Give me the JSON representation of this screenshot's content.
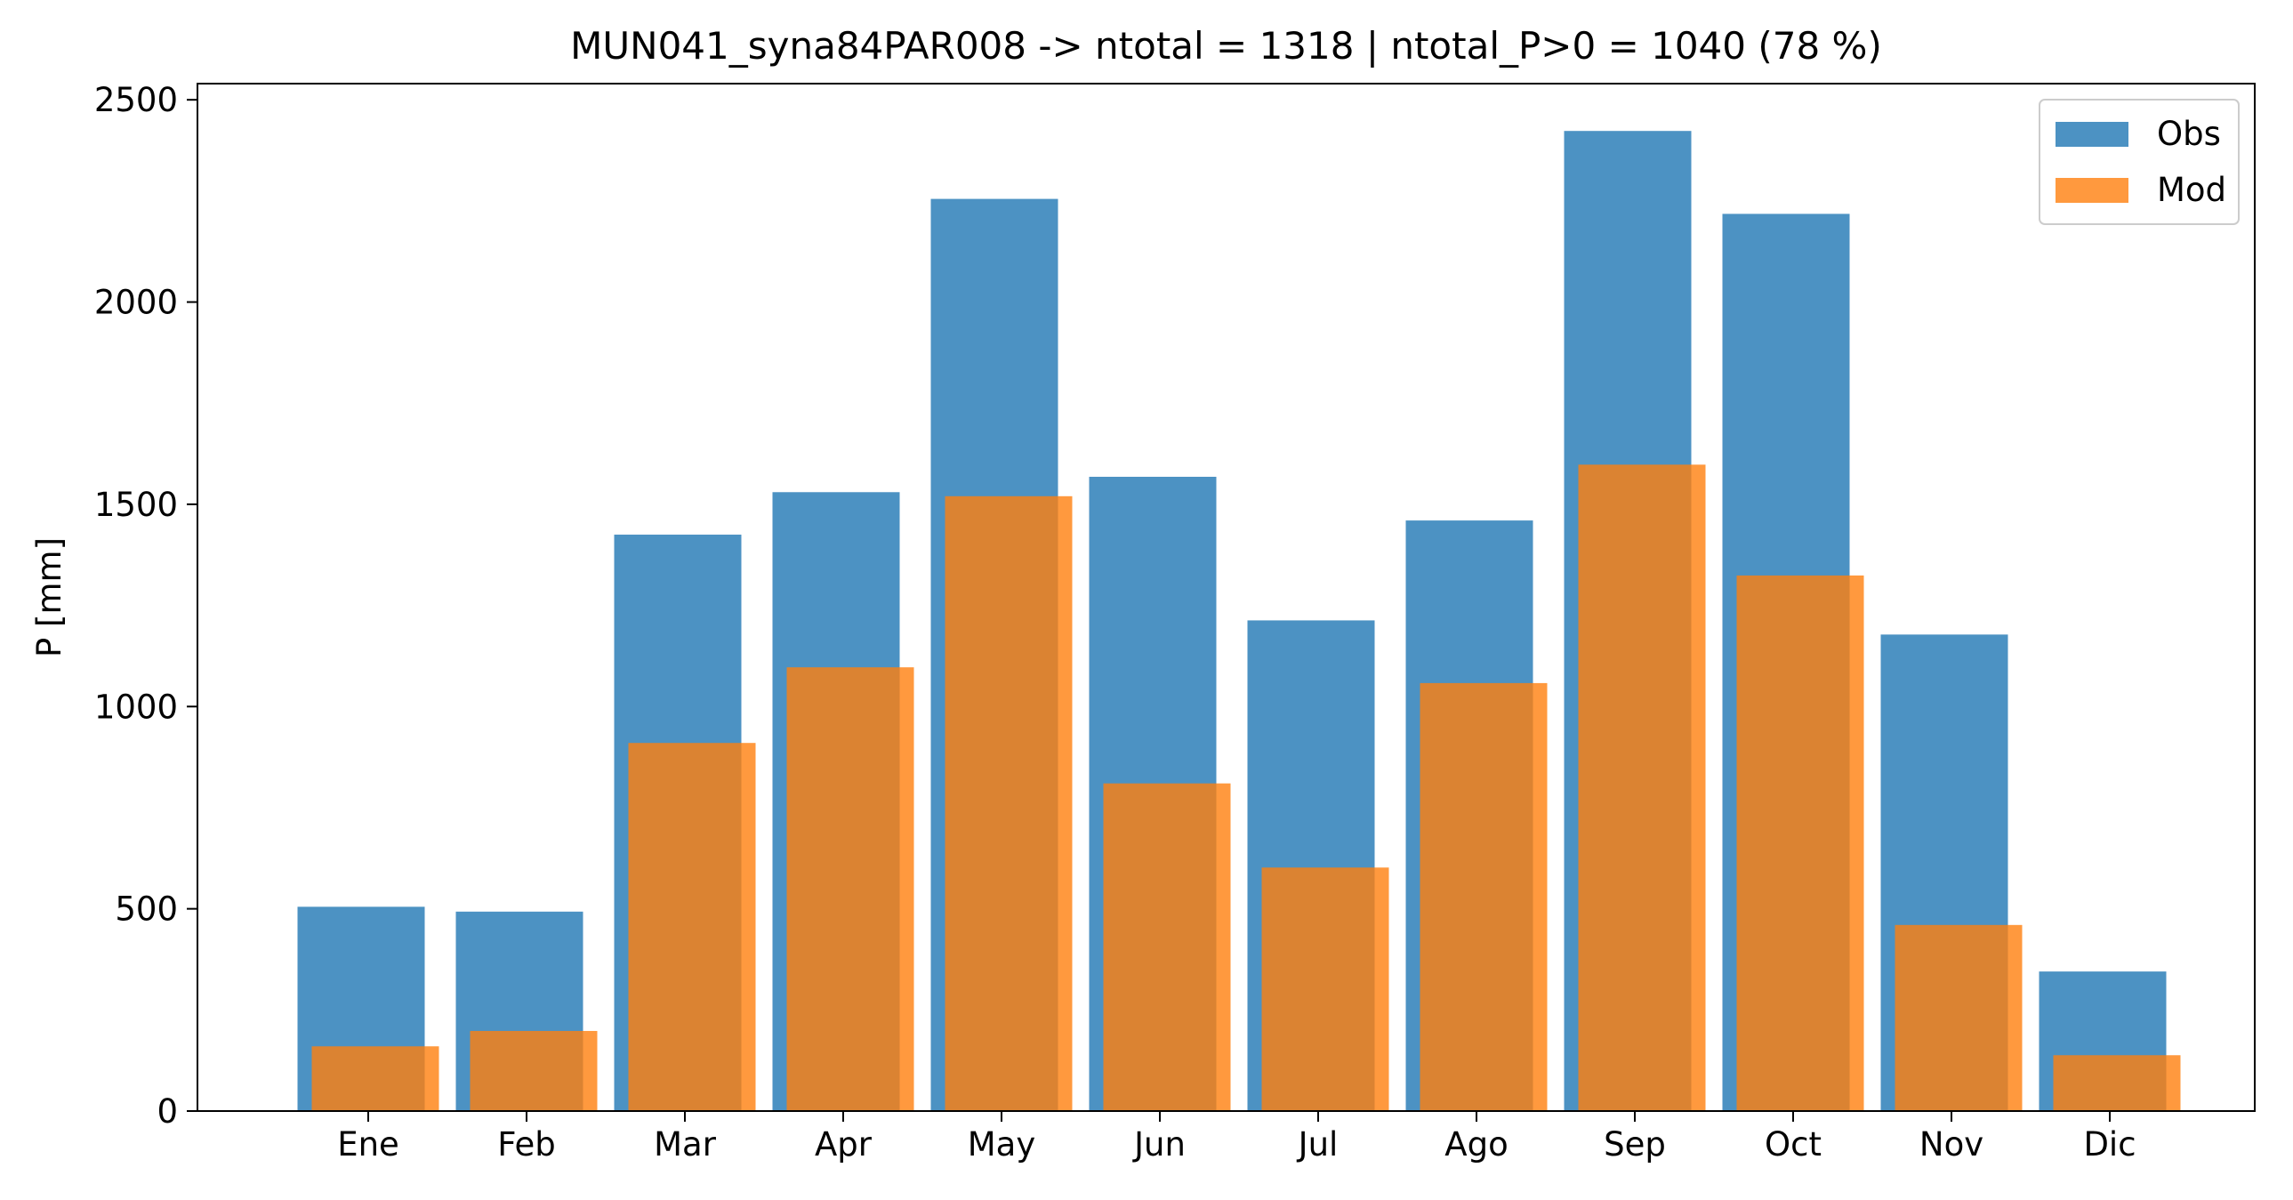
{
  "chart_data": {
    "type": "bar",
    "title": "MUN041_syna84PAR008 -> ntotal = 1318 | ntotal_P>0 = 1040 (78 %)",
    "xlabel": "",
    "ylabel": "P [mm]",
    "categories": [
      "Ene",
      "Feb",
      "Mar",
      "Apr",
      "May",
      "Jun",
      "Jul",
      "Ago",
      "Sep",
      "Oct",
      "Nov",
      "Dic"
    ],
    "ylim": [
      0,
      2540
    ],
    "yticks": [
      0,
      500,
      1000,
      1500,
      2000,
      2500
    ],
    "grid": false,
    "legend_position": "top-right",
    "series": [
      {
        "name": "Obs",
        "color": "#1f77b4",
        "opacity": 0.8,
        "values": [
          505,
          493,
          1425,
          1530,
          2255,
          1568,
          1213,
          1460,
          2423,
          2218,
          1178,
          345
        ]
      },
      {
        "name": "Mod",
        "color": "#ff7f0e",
        "opacity": 0.8,
        "values": [
          160,
          198,
          910,
          1097,
          1520,
          810,
          602,
          1058,
          1598,
          1324,
          460,
          138
        ]
      }
    ]
  }
}
